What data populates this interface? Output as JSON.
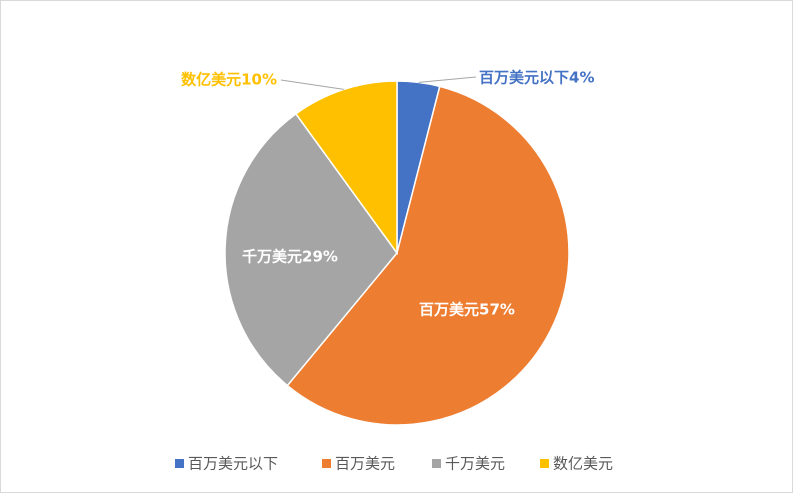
{
  "chart_data": {
    "type": "pie",
    "title": "",
    "categories": [
      "百万美元以下",
      "百万美元",
      "千万美元",
      "数亿美元"
    ],
    "values": [
      4,
      57,
      29,
      10
    ],
    "unit": "%",
    "colors": [
      "#4472c4",
      "#ed7d31",
      "#a5a5a5",
      "#ffc000"
    ],
    "data_labels": [
      "百万美元以下4%",
      "百万美元57%",
      "千万美元29%",
      "数亿美元10%"
    ],
    "legend": {
      "position": "bottom",
      "entries": [
        "百万美元以下",
        "百万美元",
        "千万美元",
        "数亿美元"
      ]
    }
  }
}
